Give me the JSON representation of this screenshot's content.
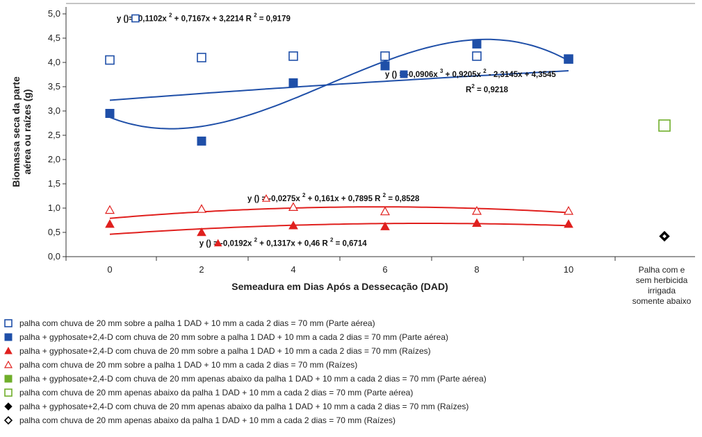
{
  "chart_data": {
    "type": "scatter",
    "ylabel_line1": "Biomassa seca da parte",
    "ylabel_line2": "aérea ou raízes (g)",
    "xlabel": "Semeadura em Dias Após a Dessecação (DAD)",
    "ylim": [
      0,
      5
    ],
    "xlim": [
      -1,
      13
    ],
    "yticks": [
      "0,0",
      "0,5",
      "1,0",
      "1,5",
      "2,0",
      "2,5",
      "3,0",
      "3,5",
      "4,0",
      "4,5",
      "5,0"
    ],
    "xticks": [
      "0",
      "2",
      "4",
      "6",
      "8",
      "10"
    ],
    "extra_category": [
      "Palha com e",
      "sem herbicida",
      "irrigada",
      "somente abaixo"
    ],
    "grid": false,
    "legend_position": "bottom",
    "series": [
      {
        "name": "palha com chuva de 20 mm sobre a palha 1 DAD + 10 mm a cada 2 dias = 70 mm (Parte aérea)",
        "marker": "square-open",
        "color": "#1f4fa8",
        "x": [
          0,
          2,
          4,
          6,
          8,
          10
        ],
        "y": [
          4.05,
          4.1,
          4.13,
          4.13,
          4.13,
          4.07
        ],
        "fit": [
          -0.1102,
          0.7167,
          3.2214
        ],
        "fit_x_scale": 0.1
      },
      {
        "name": "palha + gyphosate+2,4-D com chuva de 20 mm sobre a palha 1 DAD + 10 mm a cada 2 dias = 70 mm (Parte aérea)",
        "marker": "square-filled",
        "color": "#1f4fa8",
        "x": [
          0,
          2,
          4,
          6,
          8,
          10
        ],
        "y": [
          2.95,
          2.38,
          3.58,
          3.93,
          4.38,
          4.07
        ],
        "fit_cubic": [
          -0.0906,
          0.9205,
          -2.3145,
          4.3545
        ],
        "fit_x_scale": 0.5
      },
      {
        "name": "palha + gyphosate+2,4-D com chuva de 20 mm sobre a palha 1 DAD + 10 mm a cada 2 dias = 70 mm (Raízes)",
        "marker": "triangle-filled",
        "color": "#e0201e",
        "x": [
          0,
          2,
          4,
          6,
          8,
          10
        ],
        "y": [
          0.67,
          0.5,
          0.64,
          0.62,
          0.69,
          0.67
        ],
        "fit": [
          -0.0192,
          0.1317,
          0.46
        ],
        "fit_x_scale": 0.5
      },
      {
        "name": "palha com chuva de 20 mm sobre a palha 1 DAD + 10 mm a cada 2 dias = 70 mm (Raízes)",
        "marker": "triangle-open",
        "color": "#e0201e",
        "x": [
          0,
          2,
          4,
          6,
          8,
          10
        ],
        "y": [
          0.96,
          0.98,
          1.02,
          0.93,
          0.94,
          0.94
        ],
        "fit": [
          -0.0275,
          0.161,
          0.7895
        ],
        "fit_x_scale": 0.5
      },
      {
        "name": "palha + gyphosate+2,4-D com chuva de 20 mm apenas abaixo da palha 1 DAD + 10 mm a cada 2 dias = 70 mm (Parte aérea)",
        "marker": "square-filled",
        "color": "#6fae2a",
        "x": [
          12
        ],
        "y": [
          2.7
        ]
      },
      {
        "name": "palha com chuva de 20 mm apenas abaixo da palha 1 DAD + 10 mm a cada 2 dias = 70 mm (Parte aérea)",
        "marker": "square-open",
        "color": "#6fae2a",
        "x": [
          12
        ],
        "y": [
          2.7
        ]
      },
      {
        "name": "palha + gyphosate+2,4-D com chuva de 20 mm apenas abaixo da palha 1 DAD + 10 mm a cada 2 dias = 70 mm (Raízes)",
        "marker": "diamond-filled",
        "color": "#000000",
        "x": [
          12
        ],
        "y": [
          0.42
        ]
      },
      {
        "name": "palha com chuva de 20 mm apenas abaixo da palha 1 DAD + 10 mm a cada 2 dias = 70 mm (Raízes)",
        "marker": "diamond-open",
        "color": "#000000",
        "x": [
          12
        ],
        "y": [
          0.42
        ]
      }
    ],
    "equations": [
      {
        "symbol": "square-open",
        "color": "#1f4fa8",
        "x": 0.15,
        "y": 4.85,
        "parts": [
          "y (",
          ")= -0,1102x ",
          "2",
          " + 0,7167x + 3,2214    R ",
          "2",
          " = 0,9179"
        ]
      },
      {
        "symbol": "square-filled",
        "color": "#1f4fa8",
        "x": 6.0,
        "y": 3.7,
        "parts": [
          "y (",
          ") = -0,0906x ",
          "3",
          " + 0,9205x ",
          "2",
          " - 2,3145x + 4,3545"
        ],
        "extra_line": [
          "R",
          "2",
          " = 0,9218"
        ]
      },
      {
        "symbol": "triangle-open",
        "color": "#e0201e",
        "x": 3.0,
        "y": 1.14,
        "parts": [
          "y (",
          ") = -0,0275x ",
          "2",
          " + 0,161x + 0,7895  R ",
          "2",
          " = 0,8528"
        ]
      },
      {
        "symbol": "triangle-filled",
        "color": "#e0201e",
        "x": 1.95,
        "y": 0.22,
        "parts": [
          "y (",
          ") = -0,0192x ",
          "2",
          " + 0,1317x + 0,46  R ",
          "2",
          " = 0,6714"
        ]
      }
    ]
  }
}
